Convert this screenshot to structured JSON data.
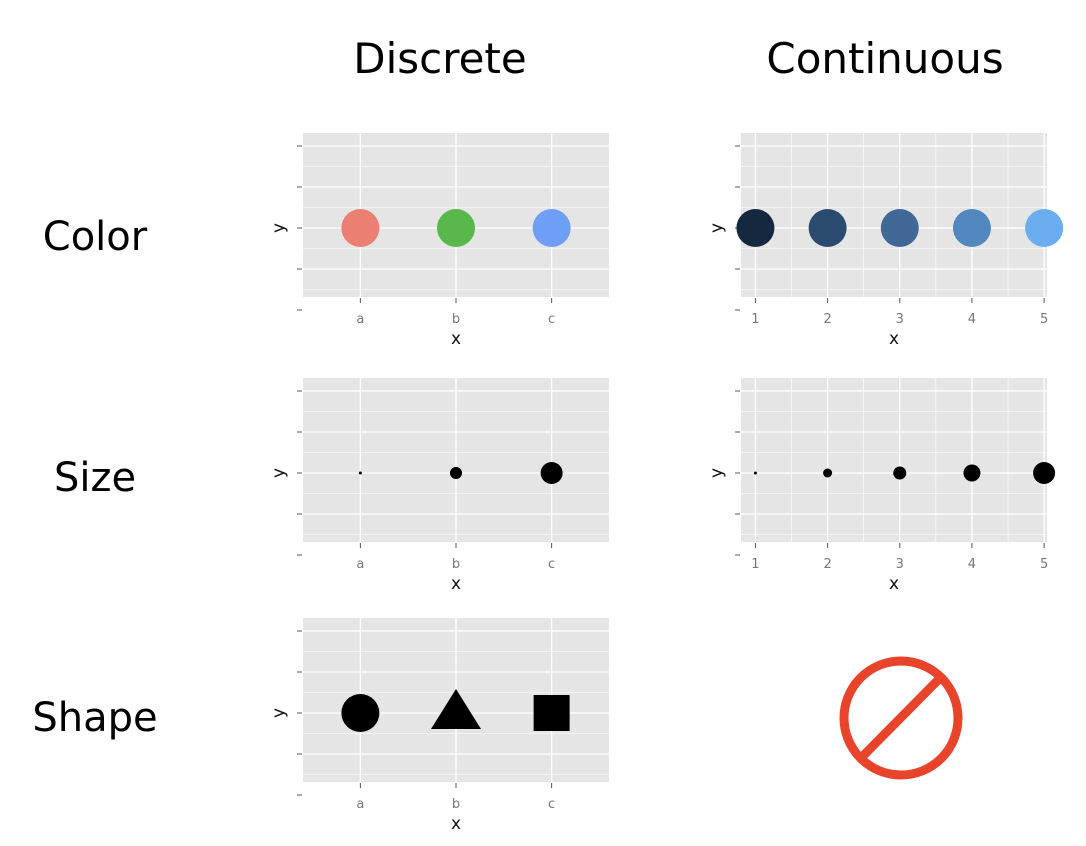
{
  "headers": {
    "discrete": "Discrete",
    "continuous": "Continuous"
  },
  "rows": {
    "color": "Color",
    "size": "Size",
    "shape": "Shape"
  },
  "colors": {
    "panel_bg": "#e5e5e5",
    "grid": "#ffffff",
    "no_sign": "#e8432b"
  },
  "chart_data": [
    {
      "id": "color-discrete",
      "type": "scatter",
      "xlabel": "x",
      "ylabel": "y",
      "categories": [
        "a",
        "b",
        "c"
      ],
      "aesthetic": "color",
      "points": [
        {
          "x": "a",
          "color": "#ea7f72"
        },
        {
          "x": "b",
          "color": "#58b84b"
        },
        {
          "x": "c",
          "color": "#6e9ef5"
        }
      ]
    },
    {
      "id": "color-continuous",
      "type": "scatter",
      "xlabel": "x",
      "ylabel": "y",
      "x": [
        1,
        2,
        3,
        4,
        5
      ],
      "aesthetic": "color",
      "points": [
        {
          "x": 1,
          "color": "#16283f"
        },
        {
          "x": 2,
          "color": "#2b4a6f"
        },
        {
          "x": 3,
          "color": "#3f6897"
        },
        {
          "x": 4,
          "color": "#5387bf"
        },
        {
          "x": 5,
          "color": "#6aaef0"
        }
      ]
    },
    {
      "id": "size-discrete",
      "type": "scatter",
      "xlabel": "x",
      "ylabel": "y",
      "categories": [
        "a",
        "b",
        "c"
      ],
      "aesthetic": "size",
      "points": [
        {
          "x": "a",
          "size": 1
        },
        {
          "x": "b",
          "size": 2
        },
        {
          "x": "c",
          "size": 3
        }
      ]
    },
    {
      "id": "size-continuous",
      "type": "scatter",
      "xlabel": "x",
      "ylabel": "y",
      "x": [
        1,
        2,
        3,
        4,
        5
      ],
      "aesthetic": "size",
      "points": [
        {
          "x": 1,
          "size": 1
        },
        {
          "x": 2,
          "size": 2
        },
        {
          "x": 3,
          "size": 3
        },
        {
          "x": 4,
          "size": 4
        },
        {
          "x": 5,
          "size": 5
        }
      ]
    },
    {
      "id": "shape-discrete",
      "type": "scatter",
      "xlabel": "x",
      "ylabel": "y",
      "categories": [
        "a",
        "b",
        "c"
      ],
      "aesthetic": "shape",
      "points": [
        {
          "x": "a",
          "shape": "circle"
        },
        {
          "x": "b",
          "shape": "triangle"
        },
        {
          "x": "c",
          "shape": "square"
        }
      ]
    }
  ],
  "no_sign_icon": "prohibited-icon"
}
